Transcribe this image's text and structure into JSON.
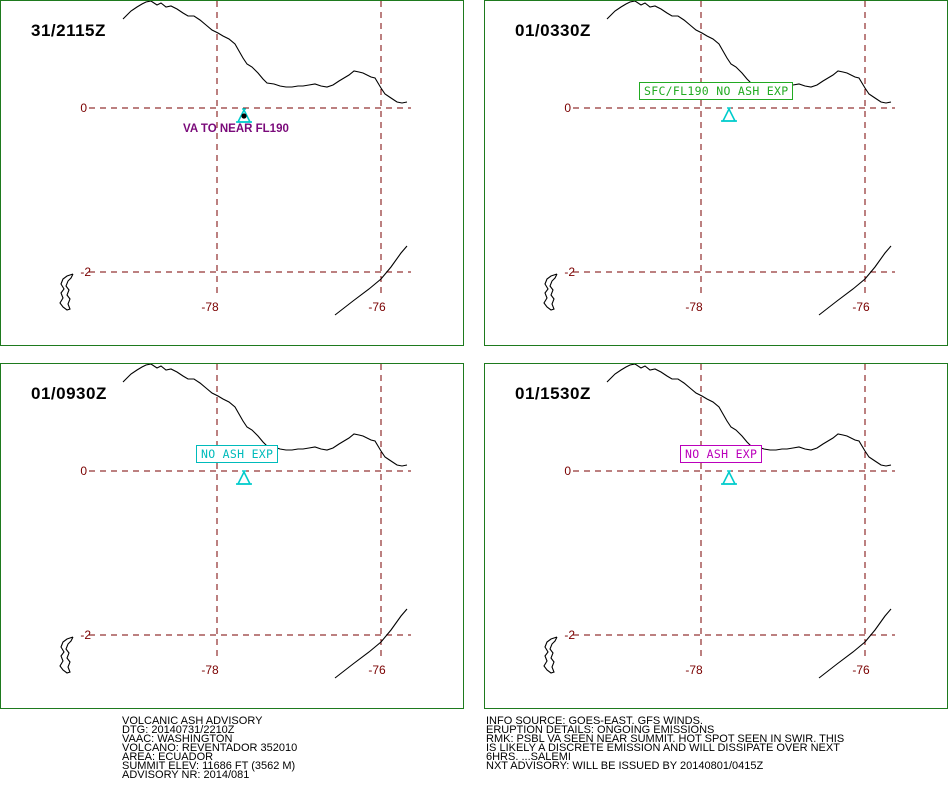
{
  "colors": {
    "border": "#1e7a1e",
    "grid": "#7a0000",
    "volcano": "#00cccc",
    "va_text": "#7a0a7a",
    "label_green": "#22aa22",
    "label_cyan": "#00bbbb",
    "label_magenta": "#bb00bb"
  },
  "panels": [
    {
      "time": "31/2115Z",
      "label": "VA TO NEAR FL190",
      "label_style": "plain"
    },
    {
      "time": "01/0330Z",
      "label": "SFC/FL190 NO ASH EXP",
      "label_style": "box-green"
    },
    {
      "time": "01/0930Z",
      "label": "NO ASH EXP",
      "label_style": "box-cyan"
    },
    {
      "time": "01/1530Z",
      "label": "NO ASH EXP",
      "label_style": "box-magenta"
    }
  ],
  "grid_labels": {
    "lat0": "0",
    "latm2": "-2",
    "lon78": "-78",
    "lon76": "-76"
  },
  "volcano_icon": "volcano-triangle-icon",
  "advisory_left": [
    "VOLCANIC ASH ADVISORY",
    "DTG: 20140731/2210Z",
    "VAAC: WASHINGTON",
    "VOLCANO: REVENTADOR 352010",
    "AREA: ECUADOR",
    "SUMMIT ELEV: 11686 FT (3562 M)",
    "ADVISORY NR: 2014/081"
  ],
  "advisory_right": [
    "INFO SOURCE: GOES-EAST. GFS WINDS.",
    "ERUPTION DETAILS: ONGOING EMISSIONS",
    "RMK: PSBL VA SEEN NEAR SUMMIT. HOT SPOT SEEN IN SWIR. THIS",
    "IS LIKELY A DISCRETE EMISSION AND WILL DISSIPATE OVER NEXT",
    "6HRS. ...SALEMI",
    "NXT ADVISORY: WILL BE ISSUED BY 20140801/0415Z"
  ]
}
